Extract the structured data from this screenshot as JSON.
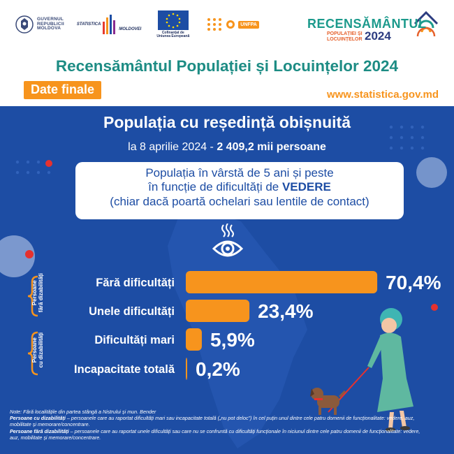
{
  "header": {
    "gov_text": [
      "GUVERNUL",
      "REPUBLICII",
      "MOLDOVA"
    ],
    "stat_text": [
      "STATISTICA",
      "MOLDOVEI"
    ],
    "eu_caption": [
      "Cofinanțat de",
      "Uniunea Europeană"
    ],
    "unfpa": "UNFPA",
    "census_logo": {
      "title": "RECENSĂMÂNTUL",
      "sub": [
        "POPULAȚIEI ȘI",
        "LOCUINȚELOR"
      ],
      "year": "2024"
    },
    "main_title": "Recensământul Populației și Locuințelor 2024",
    "badge": "Date finale",
    "website": "www.statistica.gov.md"
  },
  "panel": {
    "title": "Populația cu reședință obișnuită",
    "subtitle_prefix": "la 8 aprilie 2024 - ",
    "subtitle_value": "2 409,2 mii persoane",
    "question": {
      "line1": "Populația în vârstă de 5 ani și peste",
      "line2_prefix": "în funcție de dificultăți de ",
      "line2_highlight": "VEDERE",
      "line3": "(chiar dacă poartă ochelari sau lentile de contact)"
    },
    "groups": [
      {
        "label": [
          "Persoane",
          "fără dizabilități"
        ],
        "color": "#f7941d"
      },
      {
        "label": [
          "Persoane",
          "cu dizabilități"
        ],
        "color": "#f7941d"
      }
    ]
  },
  "chart_data": {
    "type": "bar",
    "orientation": "horizontal",
    "categories": [
      "Fără dificultăți",
      "Unele dificultăți",
      "Dificultăți mari",
      "Incapacitate totală"
    ],
    "values": [
      70.4,
      23.4,
      5.9,
      0.2
    ],
    "value_labels": [
      "70,4%",
      "23,4%",
      "5,9%",
      "0,2%"
    ],
    "unit": "%",
    "bar_color": "#f7941d",
    "xlim": [
      0,
      100
    ],
    "grid": false,
    "legend": false
  },
  "notes": {
    "line1": "Note: Fără localitățile din partea stângă a Nistrului și mun. Bender",
    "def1_term": "Persoane cu dizabilități",
    "def1_text": " – persoanele care au raportat dificultăți mari sau incapacitate totală („nu pot deloc”) în cel puțin unul dintre cele patru domenii de funcționalitate: vedere, auz, mobilitate și memorare/concentrare.",
    "def2_term": "Persoane fără dizabilități",
    "def2_text": " – persoanele care au raportat unele dificultăți sau care nu se confruntă cu dificultăți funcționale în niciunul dintre cele patru domenii de funcționalitate: vedere, auz, mobilitate și memorare/concentrare."
  },
  "colors": {
    "panel_blue": "#1d4da4",
    "teal": "#1d8c84",
    "orange": "#f7941d"
  }
}
